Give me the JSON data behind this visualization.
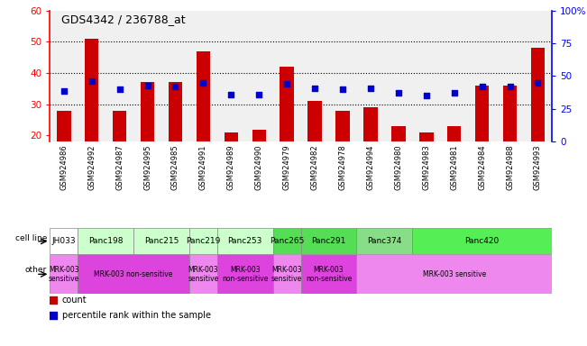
{
  "title": "GDS4342 / 236788_at",
  "samples": [
    "GSM924986",
    "GSM924992",
    "GSM924987",
    "GSM924995",
    "GSM924985",
    "GSM924991",
    "GSM924989",
    "GSM924990",
    "GSM924979",
    "GSM924982",
    "GSM924978",
    "GSM924994",
    "GSM924980",
    "GSM924983",
    "GSM924981",
    "GSM924984",
    "GSM924988",
    "GSM924993"
  ],
  "counts": [
    28,
    51,
    28,
    37,
    37,
    47,
    21,
    22,
    42,
    31,
    28,
    29,
    23,
    21,
    23,
    36,
    36,
    48
  ],
  "percentiles": [
    39,
    46,
    40,
    43,
    42,
    45,
    36,
    36,
    44,
    41,
    40,
    41,
    37,
    35,
    37,
    42,
    42,
    45
  ],
  "ylim_left": [
    18,
    60
  ],
  "ylim_right": [
    0,
    100
  ],
  "yticks_left": [
    20,
    30,
    40,
    50,
    60
  ],
  "yticks_right": [
    0,
    25,
    50,
    75,
    100
  ],
  "bar_color": "#cc0000",
  "dot_color": "#0000cc",
  "cell_line_data": [
    {
      "label": "JH033",
      "start": 0,
      "end": 1,
      "color": "#ffffff"
    },
    {
      "label": "Panc198",
      "start": 1,
      "end": 3,
      "color": "#ccffcc"
    },
    {
      "label": "Panc215",
      "start": 3,
      "end": 5,
      "color": "#ccffcc"
    },
    {
      "label": "Panc219",
      "start": 5,
      "end": 6,
      "color": "#ccffcc"
    },
    {
      "label": "Panc253",
      "start": 6,
      "end": 8,
      "color": "#ccffcc"
    },
    {
      "label": "Panc265",
      "start": 8,
      "end": 9,
      "color": "#55dd55"
    },
    {
      "label": "Panc291",
      "start": 9,
      "end": 11,
      "color": "#55dd55"
    },
    {
      "label": "Panc374",
      "start": 11,
      "end": 13,
      "color": "#88dd88"
    },
    {
      "label": "Panc420",
      "start": 13,
      "end": 18,
      "color": "#55ee55"
    }
  ],
  "other_data": [
    {
      "label": "MRK-003\nsensitive",
      "start": 0,
      "end": 1,
      "color": "#ee88ee"
    },
    {
      "label": "MRK-003 non-sensitive",
      "start": 1,
      "end": 5,
      "color": "#dd44dd"
    },
    {
      "label": "MRK-003\nsensitive",
      "start": 5,
      "end": 6,
      "color": "#ee88ee"
    },
    {
      "label": "MRK-003\nnon-sensitive",
      "start": 6,
      "end": 8,
      "color": "#dd44dd"
    },
    {
      "label": "MRK-003\nsensitive",
      "start": 8,
      "end": 9,
      "color": "#ee88ee"
    },
    {
      "label": "MRK-003\nnon-sensitive",
      "start": 9,
      "end": 11,
      "color": "#dd44dd"
    },
    {
      "label": "MRK-003 sensitive",
      "start": 11,
      "end": 18,
      "color": "#ee88ee"
    }
  ],
  "xaxis_bg_colors": [
    {
      "start": 0,
      "end": 1,
      "color": "#e8e8e8"
    },
    {
      "start": 1,
      "end": 3,
      "color": "#e8e8e8"
    },
    {
      "start": 3,
      "end": 5,
      "color": "#e8e8e8"
    },
    {
      "start": 5,
      "end": 6,
      "color": "#e8e8e8"
    },
    {
      "start": 6,
      "end": 8,
      "color": "#e8e8e8"
    },
    {
      "start": 8,
      "end": 9,
      "color": "#e8e8e8"
    },
    {
      "start": 9,
      "end": 11,
      "color": "#e8e8e8"
    },
    {
      "start": 11,
      "end": 13,
      "color": "#e8e8e8"
    },
    {
      "start": 13,
      "end": 18,
      "color": "#e8e8e8"
    }
  ]
}
